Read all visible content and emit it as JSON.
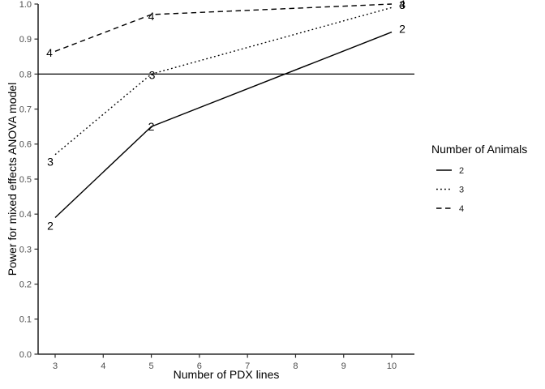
{
  "chart_data": {
    "type": "line",
    "title": "",
    "xlabel": "Number of PDX lines",
    "ylabel": "Power for mixed effects ANOVA model",
    "xlim": [
      2.65,
      10.45
    ],
    "ylim": [
      0.0,
      1.0
    ],
    "grid": false,
    "x_ticks": [
      "3",
      "4",
      "5",
      "6",
      "7",
      "8",
      "9",
      "10"
    ],
    "y_ticks": [
      "0.0",
      "0.1",
      "0.2",
      "0.3",
      "0.4",
      "0.5",
      "0.6",
      "0.7",
      "0.8",
      "0.9",
      "1.0"
    ],
    "reference_line_y": 0.8,
    "legend_position": "right",
    "legend_title": "Number of Animals",
    "series": [
      {
        "name": "2",
        "linestyle": "solid",
        "color": "#000000",
        "x": [
          3,
          5,
          10
        ],
        "y": [
          0.39,
          0.65,
          0.92
        ],
        "labels": [
          {
            "text": "2",
            "dx": -6,
            "dy": 10
          },
          {
            "text": "2",
            "dx": 0,
            "dy": 0
          },
          {
            "text": "2",
            "dx": 13,
            "dy": -4
          }
        ]
      },
      {
        "name": "3",
        "linestyle": "dotted",
        "color": "#000000",
        "x": [
          3,
          5,
          10
        ],
        "y": [
          0.57,
          0.8,
          0.99
        ],
        "labels": [
          {
            "text": "3",
            "dx": -6,
            "dy": 9
          },
          {
            "text": "3",
            "dx": 1,
            "dy": 1
          },
          {
            "text": "3",
            "dx": 13,
            "dy": -3
          }
        ]
      },
      {
        "name": "4",
        "linestyle": "dashed",
        "color": "#000000",
        "x": [
          3,
          5,
          10
        ],
        "y": [
          0.865,
          0.97,
          1.0
        ],
        "labels": [
          {
            "text": "4",
            "dx": -7,
            "dy": 2
          },
          {
            "text": "4",
            "dx": 0,
            "dy": 2
          },
          {
            "text": "4",
            "dx": 13,
            "dy": 0
          }
        ]
      }
    ],
    "legend_entries": [
      {
        "label": "2",
        "linestyle": "solid"
      },
      {
        "label": "3",
        "linestyle": "dotted"
      },
      {
        "label": "4",
        "linestyle": "dashed"
      }
    ]
  },
  "colors": {
    "line": "#000000",
    "axis": "#2b2b2b",
    "tick_label": "#4d4d4d",
    "text": "#000000",
    "background": "#ffffff"
  }
}
